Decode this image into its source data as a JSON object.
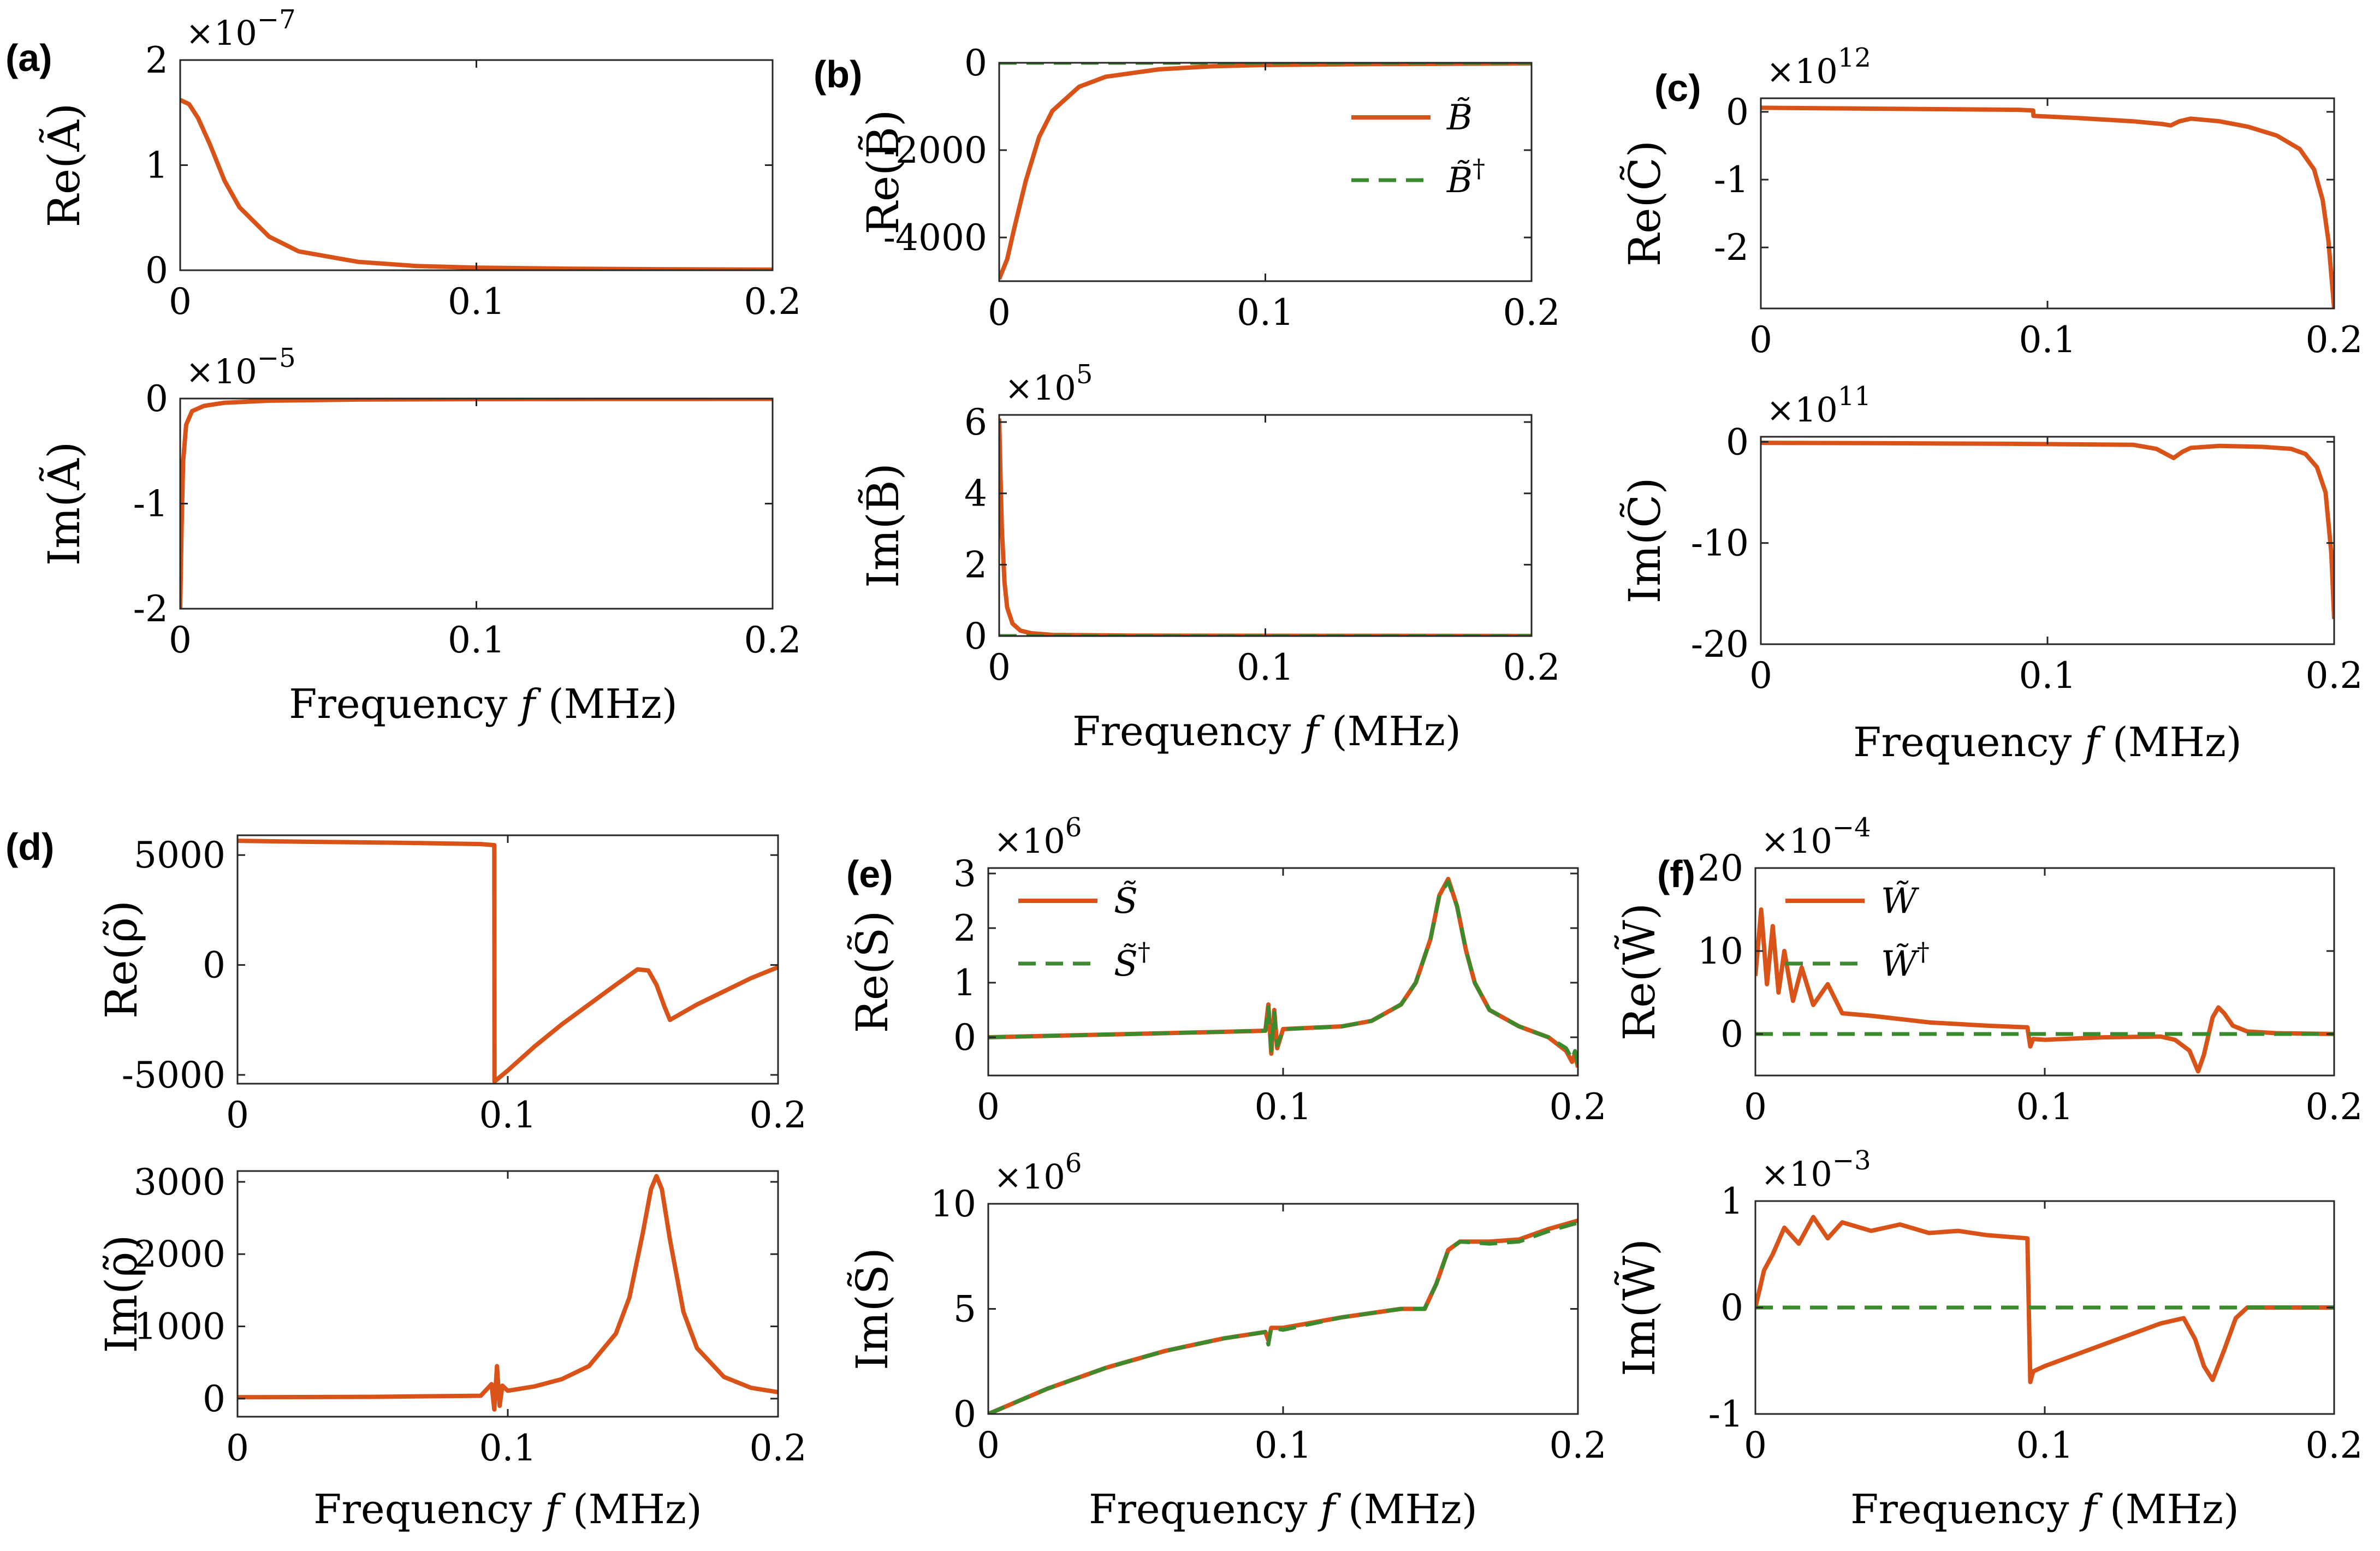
{
  "colors": {
    "orange": "#d95319",
    "green": "#3c8a2e",
    "axis": "#262626"
  },
  "xlabel": "Frequency",
  "xlabel_sym": "f",
  "xlabel_unit": "(MHz)",
  "panels": [
    {
      "label": "(a)"
    },
    {
      "label": "(b)"
    },
    {
      "label": "(c)"
    },
    {
      "label": "(d)"
    },
    {
      "label": "(e)"
    },
    {
      "label": "(f)"
    }
  ],
  "chart_data": [
    {
      "id": "a1",
      "panel": "(a)",
      "type": "line",
      "ylabel": "Re(Ã)",
      "multiplier": "×10",
      "exponent": "−7",
      "xlim": [
        0,
        0.2
      ],
      "ylim": [
        0,
        2
      ],
      "xticks": [
        "0",
        "0.1",
        "0.2"
      ],
      "yticks": [
        "0",
        "1",
        "2"
      ],
      "series": [
        {
          "name": "Ã",
          "color": "orange",
          "style": "solid",
          "x": [
            0,
            0.003,
            0.006,
            0.01,
            0.015,
            0.02,
            0.03,
            0.04,
            0.06,
            0.08,
            0.1,
            0.13,
            0.16,
            0.2
          ],
          "y": [
            1.62,
            1.58,
            1.45,
            1.2,
            0.85,
            0.6,
            0.32,
            0.18,
            0.08,
            0.04,
            0.025,
            0.015,
            0.01,
            0.005
          ]
        }
      ]
    },
    {
      "id": "a2",
      "panel": "(a)",
      "type": "line",
      "ylabel": "Im(Ã)",
      "multiplier": "×10",
      "exponent": "−5",
      "xlim": [
        0,
        0.2
      ],
      "ylim": [
        -2,
        0
      ],
      "xticks": [
        "0",
        "0.1",
        "0.2"
      ],
      "yticks": [
        "-2",
        "-1",
        "0"
      ],
      "series": [
        {
          "name": "Ã",
          "color": "orange",
          "style": "solid",
          "x": [
            0,
            0.0005,
            0.001,
            0.002,
            0.004,
            0.008,
            0.015,
            0.03,
            0.06,
            0.1,
            0.2
          ],
          "y": [
            -2.0,
            -1.2,
            -0.6,
            -0.25,
            -0.12,
            -0.07,
            -0.04,
            -0.02,
            -0.01,
            -0.005,
            -0.003
          ]
        }
      ]
    },
    {
      "id": "b1",
      "panel": "(b)",
      "type": "line",
      "ylabel": "Re(B̃)",
      "multiplier": "",
      "exponent": "",
      "xlim": [
        0,
        0.2
      ],
      "ylim": [
        -5000,
        0
      ],
      "xticks": [
        "0",
        "0.1",
        "0.2"
      ],
      "yticks": [
        "-4000",
        "-2000",
        "0"
      ],
      "legend": {
        "position": "top-right",
        "entries": [
          {
            "text": "B̃",
            "sup": "",
            "color": "orange",
            "style": "solid"
          },
          {
            "text": "B̃",
            "sup": "†",
            "color": "green",
            "style": "dashed"
          }
        ]
      },
      "series": [
        {
          "name": "B̃",
          "color": "orange",
          "style": "solid",
          "x": [
            0,
            0.003,
            0.006,
            0.01,
            0.015,
            0.02,
            0.03,
            0.04,
            0.06,
            0.08,
            0.1,
            0.14,
            0.2
          ],
          "y": [
            -4950,
            -4500,
            -3700,
            -2700,
            -1700,
            -1100,
            -550,
            -320,
            -150,
            -80,
            -50,
            -30,
            -15
          ]
        },
        {
          "name": "B̃†",
          "color": "green",
          "style": "dashed",
          "x": [
            0,
            0.2
          ],
          "y": [
            0,
            0
          ]
        }
      ]
    },
    {
      "id": "b2",
      "panel": "(b)",
      "type": "line",
      "ylabel": "Im(B̃)",
      "multiplier": "×10",
      "exponent": "5",
      "xlim": [
        0,
        0.2
      ],
      "ylim": [
        0,
        6.2
      ],
      "xticks": [
        "0",
        "0.1",
        "0.2"
      ],
      "yticks": [
        "0",
        "2",
        "4",
        "6"
      ],
      "series": [
        {
          "name": "B̃",
          "color": "orange",
          "style": "solid",
          "x": [
            0,
            0.0005,
            0.001,
            0.002,
            0.003,
            0.005,
            0.008,
            0.012,
            0.02,
            0.05,
            0.2
          ],
          "y": [
            6.1,
            4.5,
            3.0,
            1.5,
            0.8,
            0.35,
            0.15,
            0.08,
            0.03,
            0.01,
            0.002
          ]
        },
        {
          "name": "B̃†",
          "color": "green",
          "style": "dashed",
          "x": [
            0,
            0.2
          ],
          "y": [
            0,
            0
          ]
        }
      ]
    },
    {
      "id": "c1",
      "panel": "(c)",
      "type": "line",
      "ylabel": "Re(C̃)",
      "multiplier": "×10",
      "exponent": "12",
      "xlim": [
        0,
        0.2
      ],
      "ylim": [
        -2.9,
        0.2
      ],
      "xticks": [
        "0",
        "0.1",
        "0.2"
      ],
      "yticks": [
        "-2",
        "-1",
        "0"
      ],
      "series": [
        {
          "name": "C̃",
          "color": "orange",
          "style": "solid",
          "x": [
            0,
            0.03,
            0.06,
            0.09,
            0.095,
            0.0951,
            0.11,
            0.13,
            0.14,
            0.143,
            0.146,
            0.15,
            0.16,
            0.17,
            0.18,
            0.188,
            0.193,
            0.196,
            0.198,
            0.2
          ],
          "y": [
            0.06,
            0.05,
            0.04,
            0.03,
            0.02,
            -0.06,
            -0.09,
            -0.14,
            -0.18,
            -0.2,
            -0.14,
            -0.1,
            -0.14,
            -0.22,
            -0.35,
            -0.55,
            -0.85,
            -1.3,
            -1.9,
            -2.9
          ]
        }
      ]
    },
    {
      "id": "c2",
      "panel": "(c)",
      "type": "line",
      "ylabel": "Im(C̃)",
      "multiplier": "×10",
      "exponent": "11",
      "xlim": [
        0,
        0.2
      ],
      "ylim": [
        -20,
        0.5
      ],
      "xticks": [
        "0",
        "0.1",
        "0.2"
      ],
      "yticks": [
        "-20",
        "-10",
        "0"
      ],
      "series": [
        {
          "name": "C̃",
          "color": "orange",
          "style": "solid",
          "x": [
            0,
            0.05,
            0.09,
            0.13,
            0.138,
            0.142,
            0.144,
            0.147,
            0.15,
            0.16,
            0.175,
            0.185,
            0.19,
            0.194,
            0.197,
            0.199,
            0.2
          ],
          "y": [
            -0.1,
            -0.15,
            -0.2,
            -0.3,
            -0.7,
            -1.3,
            -1.6,
            -1.0,
            -0.6,
            -0.4,
            -0.5,
            -0.7,
            -1.2,
            -2.5,
            -5,
            -11,
            -17.5
          ]
        }
      ]
    },
    {
      "id": "d1",
      "panel": "(d)",
      "type": "line",
      "ylabel": "Re(ρ̃)",
      "multiplier": "",
      "exponent": "",
      "xlim": [
        0,
        0.2
      ],
      "ylim": [
        -5400,
        5900
      ],
      "xticks": [
        "0",
        "0.1",
        "0.2"
      ],
      "yticks": [
        "-5000",
        "0",
        "5000"
      ],
      "series": [
        {
          "name": "ρ̃",
          "color": "orange",
          "style": "solid",
          "x": [
            0,
            0.03,
            0.06,
            0.09,
            0.095,
            0.0951,
            0.1,
            0.11,
            0.12,
            0.13,
            0.14,
            0.148,
            0.152,
            0.155,
            0.158,
            0.16,
            0.17,
            0.18,
            0.19,
            0.2
          ],
          "y": [
            5650,
            5600,
            5560,
            5500,
            5450,
            -5300,
            -4800,
            -3700,
            -2700,
            -1800,
            -900,
            -200,
            -250,
            -900,
            -1900,
            -2500,
            -1800,
            -1200,
            -600,
            -100
          ]
        }
      ]
    },
    {
      "id": "d2",
      "panel": "(d)",
      "type": "line",
      "ylabel": "Im(ρ̃)",
      "multiplier": "",
      "exponent": "",
      "xlim": [
        0,
        0.2
      ],
      "ylim": [
        -250,
        3150
      ],
      "xticks": [
        "0",
        "0.1",
        "0.2"
      ],
      "yticks": [
        "0",
        "1000",
        "2000",
        "3000"
      ],
      "series": [
        {
          "name": "ρ̃",
          "color": "orange",
          "style": "solid",
          "x": [
            0,
            0.05,
            0.09,
            0.094,
            0.095,
            0.096,
            0.097,
            0.098,
            0.1,
            0.11,
            0.12,
            0.13,
            0.14,
            0.145,
            0.15,
            0.153,
            0.155,
            0.157,
            0.16,
            0.165,
            0.17,
            0.18,
            0.19,
            0.2
          ],
          "y": [
            20,
            25,
            40,
            200,
            -150,
            450,
            -100,
            180,
            110,
            170,
            270,
            450,
            900,
            1400,
            2300,
            2900,
            3080,
            2900,
            2200,
            1200,
            700,
            300,
            150,
            90
          ]
        }
      ]
    },
    {
      "id": "e1",
      "panel": "(e)",
      "type": "line",
      "ylabel": "Re(S̃)",
      "multiplier": "×10",
      "exponent": "6",
      "xlim": [
        0,
        0.2
      ],
      "ylim": [
        -0.7,
        3.1
      ],
      "xticks": [
        "0",
        "0.1",
        "0.2"
      ],
      "yticks": [
        "0",
        "1",
        "2",
        "3"
      ],
      "legend": {
        "position": "top-left",
        "entries": [
          {
            "text": "S̃",
            "sup": "",
            "color": "orange",
            "style": "solid"
          },
          {
            "text": "S̃",
            "sup": "†",
            "color": "green",
            "style": "dashed"
          }
        ]
      },
      "series": [
        {
          "name": "S̃",
          "color": "orange",
          "style": "solid",
          "x": [
            0,
            0.04,
            0.08,
            0.094,
            0.095,
            0.096,
            0.097,
            0.098,
            0.1,
            0.12,
            0.13,
            0.14,
            0.145,
            0.15,
            0.153,
            0.156,
            0.159,
            0.162,
            0.165,
            0.17,
            0.18,
            0.19,
            0.196,
            0.198,
            0.199,
            0.2
          ],
          "y": [
            0.0,
            0.05,
            0.1,
            0.12,
            0.6,
            -0.3,
            0.5,
            -0.2,
            0.15,
            0.2,
            0.3,
            0.6,
            1.0,
            1.8,
            2.6,
            2.9,
            2.4,
            1.6,
            1.0,
            0.5,
            0.2,
            0.0,
            -0.25,
            -0.45,
            -0.3,
            -0.55
          ]
        },
        {
          "name": "S̃†",
          "color": "green",
          "style": "dashed",
          "x": [
            0,
            0.04,
            0.08,
            0.094,
            0.095,
            0.096,
            0.097,
            0.098,
            0.1,
            0.12,
            0.13,
            0.14,
            0.145,
            0.15,
            0.153,
            0.156,
            0.159,
            0.162,
            0.165,
            0.17,
            0.18,
            0.19,
            0.196,
            0.198,
            0.199,
            0.2
          ],
          "y": [
            0.0,
            0.05,
            0.1,
            0.12,
            0.55,
            -0.25,
            0.45,
            -0.15,
            0.15,
            0.2,
            0.3,
            0.6,
            1.0,
            1.8,
            2.6,
            2.85,
            2.4,
            1.6,
            1.0,
            0.5,
            0.2,
            0.0,
            -0.2,
            -0.4,
            -0.25,
            -0.5
          ]
        }
      ]
    },
    {
      "id": "e2",
      "panel": "(e)",
      "type": "line",
      "ylabel": "Im(S̃)",
      "multiplier": "×10",
      "exponent": "6",
      "xlim": [
        0,
        0.2
      ],
      "ylim": [
        0,
        10
      ],
      "xticks": [
        "0",
        "0.1",
        "0.2"
      ],
      "yticks": [
        "0",
        "5",
        "10"
      ],
      "series": [
        {
          "name": "S̃",
          "color": "orange",
          "style": "solid",
          "x": [
            0,
            0.02,
            0.04,
            0.06,
            0.08,
            0.094,
            0.095,
            0.096,
            0.1,
            0.12,
            0.14,
            0.148,
            0.152,
            0.156,
            0.16,
            0.17,
            0.18,
            0.19,
            0.2
          ],
          "y": [
            0,
            1.2,
            2.2,
            3.0,
            3.6,
            3.9,
            3.5,
            4.1,
            4.1,
            4.6,
            5.0,
            5.0,
            6.2,
            7.8,
            8.2,
            8.2,
            8.3,
            8.8,
            9.2
          ]
        },
        {
          "name": "S̃†",
          "color": "green",
          "style": "dashed",
          "x": [
            0,
            0.02,
            0.04,
            0.06,
            0.08,
            0.094,
            0.095,
            0.096,
            0.1,
            0.12,
            0.14,
            0.148,
            0.152,
            0.156,
            0.16,
            0.17,
            0.18,
            0.19,
            0.2
          ],
          "y": [
            0,
            1.2,
            2.2,
            3.0,
            3.6,
            3.9,
            3.3,
            4.1,
            4.0,
            4.6,
            5.0,
            5.0,
            6.2,
            7.8,
            8.2,
            8.1,
            8.2,
            8.7,
            9.1
          ]
        }
      ]
    },
    {
      "id": "f1",
      "panel": "(f)",
      "type": "line",
      "ylabel": "Re(W̃)",
      "multiplier": "×10",
      "exponent": "−4",
      "xlim": [
        0,
        0.2
      ],
      "ylim": [
        -5,
        20
      ],
      "xticks": [
        "0",
        "0.1",
        "0.2"
      ],
      "yticks": [
        "0",
        "10",
        "20"
      ],
      "legend": {
        "position": "top-left",
        "entries": [
          {
            "text": "W̃",
            "sup": "",
            "color": "orange",
            "style": "solid"
          },
          {
            "text": "W̃",
            "sup": "†",
            "color": "green",
            "style": "dashed"
          }
        ]
      },
      "series": [
        {
          "name": "W̃",
          "color": "orange",
          "style": "solid",
          "x": [
            0,
            0.002,
            0.004,
            0.006,
            0.008,
            0.01,
            0.013,
            0.016,
            0.02,
            0.025,
            0.03,
            0.04,
            0.05,
            0.06,
            0.07,
            0.08,
            0.094,
            0.095,
            0.096,
            0.1,
            0.12,
            0.14,
            0.145,
            0.15,
            0.153,
            0.155,
            0.158,
            0.16,
            0.162,
            0.165,
            0.17,
            0.18,
            0.2
          ],
          "y": [
            7,
            15,
            6,
            13,
            5,
            10,
            4,
            8,
            3.5,
            6,
            2.5,
            2.2,
            1.8,
            1.4,
            1.2,
            1.0,
            0.8,
            -1.5,
            -0.6,
            -0.7,
            -0.4,
            -0.3,
            -0.7,
            -2.0,
            -4.5,
            -2.5,
            2.0,
            3.2,
            2.5,
            1.0,
            0.3,
            0.1,
            0.0
          ]
        },
        {
          "name": "W̃†",
          "color": "green",
          "style": "dashed",
          "x": [
            0,
            0.2
          ],
          "y": [
            0,
            0
          ]
        }
      ]
    },
    {
      "id": "f2",
      "panel": "(f)",
      "type": "line",
      "ylabel": "Im(W̃)",
      "multiplier": "×10",
      "exponent": "−3",
      "xlim": [
        0,
        0.2
      ],
      "ylim": [
        -1,
        1
      ],
      "xticks": [
        "0",
        "0.1",
        "0.2"
      ],
      "yticks": [
        "-1",
        "0",
        "1"
      ],
      "series": [
        {
          "name": "W̃",
          "color": "orange",
          "style": "solid",
          "x": [
            0,
            0.003,
            0.006,
            0.01,
            0.015,
            0.02,
            0.025,
            0.03,
            0.04,
            0.05,
            0.06,
            0.07,
            0.08,
            0.094,
            0.095,
            0.096,
            0.1,
            0.11,
            0.12,
            0.13,
            0.14,
            0.148,
            0.152,
            0.155,
            0.158,
            0.162,
            0.166,
            0.17,
            0.18,
            0.2
          ],
          "y": [
            0,
            0.35,
            0.5,
            0.75,
            0.6,
            0.85,
            0.65,
            0.8,
            0.72,
            0.78,
            0.7,
            0.72,
            0.68,
            0.65,
            -0.7,
            -0.6,
            -0.55,
            -0.45,
            -0.35,
            -0.25,
            -0.15,
            -0.1,
            -0.3,
            -0.55,
            -0.68,
            -0.4,
            -0.1,
            0.0,
            0.0,
            0.0
          ]
        },
        {
          "name": "W̃†",
          "color": "green",
          "style": "dashed",
          "x": [
            0,
            0.2
          ],
          "y": [
            0,
            0
          ]
        }
      ]
    }
  ]
}
